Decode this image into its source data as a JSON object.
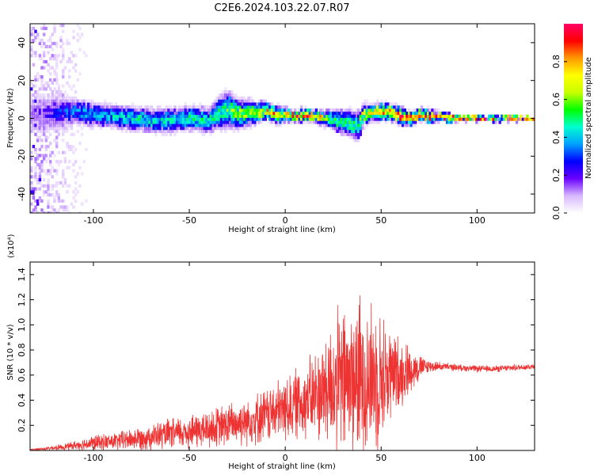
{
  "title": "C2E6.2024.103.22.07.R07",
  "chart_data": [
    {
      "type": "heatmap",
      "xlabel": "Height of straight line (km)",
      "ylabel": "Frequency (Hz)",
      "xlim": [
        -133,
        130
      ],
      "ylim": [
        -50,
        50
      ],
      "x_ticks": [
        -100,
        -50,
        0,
        50,
        100
      ],
      "y_ticks": [
        40,
        20,
        0,
        -20,
        -40
      ],
      "colorbar": {
        "label": "Normalized spectral amplitude",
        "range": [
          0.0,
          1.0
        ],
        "ticks": [
          0.0,
          0.2,
          0.4,
          0.6,
          0.8
        ],
        "colors": [
          "#ffffff",
          "#d8b8ff",
          "#6a00ff",
          "#0000ff",
          "#00a0ff",
          "#00ffd0",
          "#00ff00",
          "#c8ff00",
          "#ffff00",
          "#ff9900",
          "#ff0000",
          "#ff0066"
        ]
      },
      "ridge": {
        "x": [
          -133,
          -120,
          -110,
          -100,
          -90,
          -80,
          -70,
          -60,
          -50,
          -40,
          -35,
          -30,
          -25,
          -20,
          -15,
          -10,
          -5,
          0,
          5,
          10,
          15,
          20,
          25,
          30,
          35,
          38,
          40,
          45,
          50,
          55,
          60,
          65,
          70,
          75,
          80,
          85,
          90,
          100,
          110,
          120,
          130
        ],
        "freq_hz": [
          2,
          3,
          4,
          2,
          1,
          0,
          -1,
          -1,
          0,
          -1,
          3,
          5,
          2,
          3,
          3,
          4,
          2,
          2,
          1,
          2,
          1,
          0,
          -1,
          -2,
          -3,
          -4,
          2,
          3,
          4,
          3,
          1,
          0,
          2,
          1,
          1,
          0,
          0,
          0,
          0,
          0,
          0
        ],
        "spread_hz": [
          12,
          10,
          7,
          6,
          6,
          6,
          6,
          6,
          6,
          6,
          8,
          9,
          7,
          6,
          5,
          4,
          4,
          3,
          3,
          3,
          3,
          4,
          5,
          6,
          7,
          7,
          5,
          4,
          4,
          4,
          4,
          3,
          3,
          3,
          2,
          2,
          1.5,
          1.2,
          1.2,
          1.2,
          1.2
        ],
        "amplitude": [
          0.15,
          0.25,
          0.35,
          0.4,
          0.42,
          0.45,
          0.45,
          0.45,
          0.5,
          0.5,
          0.5,
          0.55,
          0.6,
          0.65,
          0.7,
          0.75,
          0.8,
          0.82,
          0.85,
          0.85,
          0.85,
          0.6,
          0.55,
          0.5,
          0.5,
          0.55,
          0.7,
          0.8,
          0.85,
          0.85,
          0.88,
          0.88,
          0.9,
          0.9,
          0.9,
          0.92,
          0.92,
          0.93,
          0.93,
          0.93,
          0.93
        ]
      }
    },
    {
      "type": "line",
      "xlabel": "Height of straight line (km)",
      "ylabel": "SNR (10 * v/v)",
      "y_multiplier": "(x10⁴)",
      "xlim": [
        -133,
        130
      ],
      "ylim": [
        0,
        1.5
      ],
      "x_ticks": [
        -100,
        -50,
        0,
        50,
        100
      ],
      "y_ticks": [
        0.2,
        0.4,
        0.6,
        0.8,
        1.0,
        1.2,
        1.4
      ],
      "color": "#ee3333",
      "envelope": {
        "x": [
          -133,
          -120,
          -110,
          -100,
          -90,
          -80,
          -70,
          -60,
          -50,
          -40,
          -30,
          -20,
          -10,
          0,
          5,
          10,
          15,
          20,
          25,
          30,
          35,
          40,
          45,
          50,
          55,
          60,
          65,
          70,
          75,
          80,
          90,
          100,
          110,
          120,
          130
        ],
        "mean": [
          0.005,
          0.02,
          0.04,
          0.06,
          0.07,
          0.09,
          0.11,
          0.13,
          0.15,
          0.17,
          0.2,
          0.24,
          0.28,
          0.33,
          0.37,
          0.4,
          0.43,
          0.48,
          0.52,
          0.55,
          0.57,
          0.58,
          0.58,
          0.58,
          0.6,
          0.62,
          0.64,
          0.66,
          0.67,
          0.67,
          0.66,
          0.65,
          0.65,
          0.66,
          0.67
        ],
        "amp": [
          0.005,
          0.02,
          0.04,
          0.07,
          0.08,
          0.1,
          0.12,
          0.14,
          0.16,
          0.18,
          0.2,
          0.22,
          0.25,
          0.3,
          0.32,
          0.35,
          0.4,
          0.5,
          0.62,
          0.7,
          0.75,
          0.75,
          0.7,
          0.6,
          0.45,
          0.32,
          0.22,
          0.12,
          0.06,
          0.04,
          0.03,
          0.03,
          0.03,
          0.03,
          0.03
        ]
      }
    }
  ]
}
